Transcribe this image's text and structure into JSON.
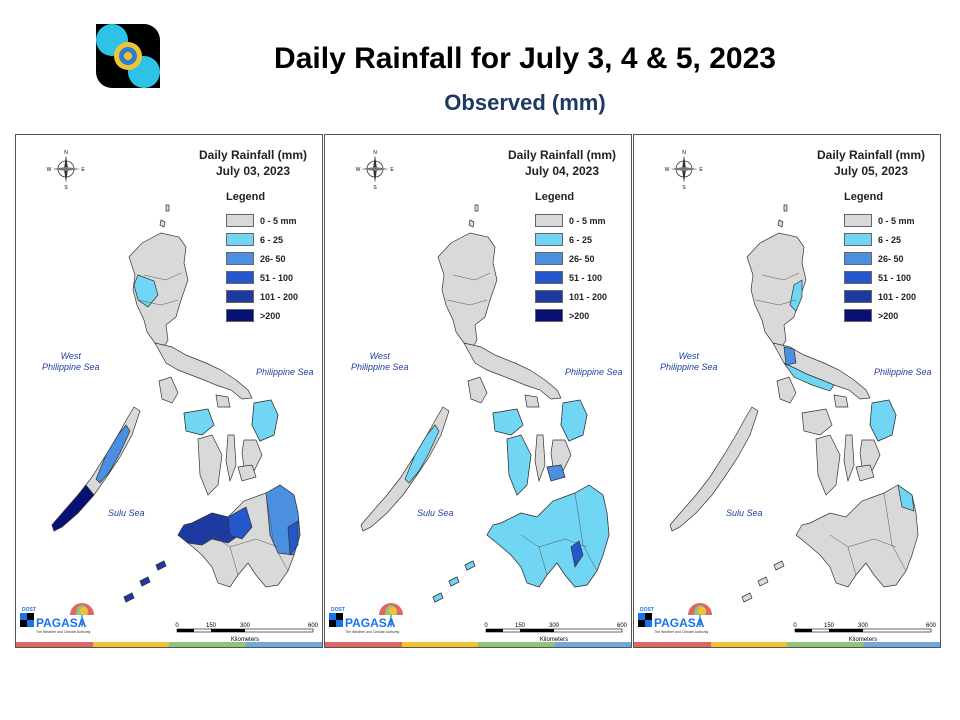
{
  "header": {
    "title": "Daily Rainfall for July 3, 4 & 5, 2023",
    "subtitle": "Observed (mm)"
  },
  "legend": {
    "title": "Legend",
    "items": [
      {
        "label": "0 - 5 mm",
        "color": "#d9d9d9"
      },
      {
        "label": "6 - 25",
        "color": "#71d5f4"
      },
      {
        "label": "26- 50",
        "color": "#4b90e0"
      },
      {
        "label": "51 - 100",
        "color": "#2457c9"
      },
      {
        "label": "101 - 200",
        "color": "#1c3a9f"
      },
      {
        "label": ">200",
        "color": "#061173"
      }
    ]
  },
  "labels": {
    "west_sea": "West Philippine Sea",
    "west_line1": "West",
    "west_line2": "Philippine Sea",
    "phil_sea": "Philippine Sea",
    "sulu_sea": "Sulu Sea",
    "compass_n": "N",
    "compass_s": "S",
    "compass_e": "E",
    "compass_w": "W",
    "scale_ticks": [
      "0",
      "150",
      "300",
      "600"
    ],
    "scale_unit": "Kilometers",
    "logo_small": "DOST",
    "logo_text": "PAGASA",
    "logo_tagline": "The Weather and Climate Authority"
  },
  "panels": [
    {
      "title_line1": "Daily Rainfall (mm)",
      "title_line2": "July 03, 2023",
      "rain": [
        {
          "area": "northern-luzon-west",
          "level": "6 - 25"
        },
        {
          "area": "palawan-south",
          "level": ">200"
        },
        {
          "area": "palawan-mid",
          "level": "26- 50"
        },
        {
          "area": "zamboanga-peninsula",
          "level": "101 - 200"
        },
        {
          "area": "western-mindanao",
          "level": "51 - 100"
        },
        {
          "area": "eastern-mindanao",
          "level": "26- 50"
        },
        {
          "area": "davao-oriental",
          "level": "51 - 100"
        },
        {
          "area": "sulu-archipelago",
          "level": "101 - 200"
        },
        {
          "area": "samar",
          "level": "6 - 25"
        },
        {
          "area": "panay",
          "level": "6 - 25"
        }
      ]
    },
    {
      "title_line1": "Daily Rainfall (mm)",
      "title_line2": "July 04, 2023",
      "rain": [
        {
          "area": "palawan-mid",
          "level": "6 - 25"
        },
        {
          "area": "mindanao",
          "level": "6 - 25"
        },
        {
          "area": "davao-gulf",
          "level": "51 - 100"
        },
        {
          "area": "bohol",
          "level": "26- 50"
        },
        {
          "area": "samar",
          "level": "6 - 25"
        },
        {
          "area": "panay",
          "level": "6 - 25"
        },
        {
          "area": "negros",
          "level": "6 - 25"
        },
        {
          "area": "sulu-archipelago",
          "level": "6 - 25"
        }
      ]
    },
    {
      "title_line1": "Daily Rainfall (mm)",
      "title_line2": "July 05, 2023",
      "rain": [
        {
          "area": "northeast-luzon",
          "level": "6 - 25"
        },
        {
          "area": "southern-luzon",
          "level": "6 - 25"
        },
        {
          "area": "laguna-bay",
          "level": "26- 50"
        },
        {
          "area": "samar",
          "level": "6 - 25"
        },
        {
          "area": "mindanao-east",
          "level": "6 - 25"
        }
      ]
    }
  ],
  "stripe_colors": [
    "#e06666",
    "#f1c232",
    "#93c47d",
    "#6fa8dc"
  ]
}
